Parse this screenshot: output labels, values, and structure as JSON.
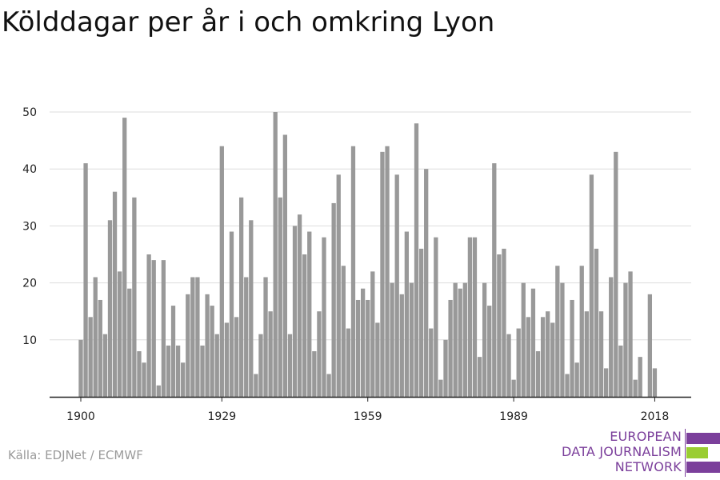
{
  "title": "Kölddagar per år i och omkring Lyon",
  "source": "Källa: EDJNet / ECMWF",
  "logo": {
    "lines": [
      "EUROPEAN",
      "DATA JOURNALISM",
      "NETWORK"
    ],
    "colors": {
      "purple": "#7b3f9b",
      "green": "#9acd32"
    }
  },
  "colors": {
    "bar": "#999999",
    "grid": "#dddddd",
    "axis": "#222222"
  },
  "chart_data": {
    "type": "bar",
    "title": "Kölddagar per år i och omkring Lyon",
    "xlabel": "",
    "ylabel": "",
    "x_ticks": [
      1900,
      1929,
      1959,
      1989,
      2018
    ],
    "y_ticks": [
      10,
      20,
      30,
      40,
      50
    ],
    "ylim": [
      0,
      50
    ],
    "grid": true,
    "x": [
      1900,
      1901,
      1902,
      1903,
      1904,
      1905,
      1906,
      1907,
      1908,
      1909,
      1910,
      1911,
      1912,
      1913,
      1914,
      1915,
      1916,
      1917,
      1918,
      1919,
      1920,
      1921,
      1922,
      1923,
      1924,
      1925,
      1926,
      1927,
      1928,
      1929,
      1930,
      1931,
      1932,
      1933,
      1934,
      1935,
      1936,
      1937,
      1938,
      1939,
      1940,
      1941,
      1942,
      1943,
      1944,
      1945,
      1946,
      1947,
      1948,
      1949,
      1950,
      1951,
      1952,
      1953,
      1954,
      1955,
      1956,
      1957,
      1958,
      1959,
      1960,
      1961,
      1962,
      1963,
      1964,
      1965,
      1966,
      1967,
      1968,
      1969,
      1970,
      1971,
      1972,
      1973,
      1974,
      1975,
      1976,
      1977,
      1978,
      1979,
      1980,
      1981,
      1982,
      1983,
      1984,
      1985,
      1986,
      1987,
      1988,
      1989,
      1990,
      1991,
      1992,
      1993,
      1994,
      1995,
      1996,
      1997,
      1998,
      1999,
      2000,
      2001,
      2002,
      2003,
      2004,
      2005,
      2006,
      2007,
      2008,
      2009,
      2010,
      2011,
      2012,
      2013,
      2014,
      2015,
      2016,
      2017,
      2018
    ],
    "values": [
      10,
      41,
      14,
      21,
      17,
      11,
      31,
      36,
      22,
      49,
      19,
      35,
      8,
      6,
      25,
      24,
      2,
      24,
      9,
      16,
      9,
      6,
      18,
      21,
      21,
      9,
      18,
      16,
      11,
      44,
      13,
      29,
      14,
      35,
      21,
      31,
      4,
      11,
      21,
      15,
      50,
      35,
      46,
      11,
      30,
      32,
      25,
      29,
      8,
      15,
      28,
      4,
      34,
      39,
      23,
      12,
      44,
      17,
      19,
      17,
      22,
      13,
      43,
      44,
      20,
      39,
      18,
      29,
      20,
      48,
      26,
      40,
      12,
      28,
      3,
      10,
      17,
      20,
      19,
      20,
      28,
      28,
      7,
      20,
      16,
      41,
      25,
      26,
      11,
      3,
      12,
      20,
      14,
      19,
      8,
      14,
      15,
      13,
      23,
      20,
      4,
      17,
      6,
      23,
      15,
      39,
      26,
      15,
      5,
      21,
      43,
      9,
      20,
      22,
      3,
      7,
      0,
      18,
      5
    ]
  }
}
